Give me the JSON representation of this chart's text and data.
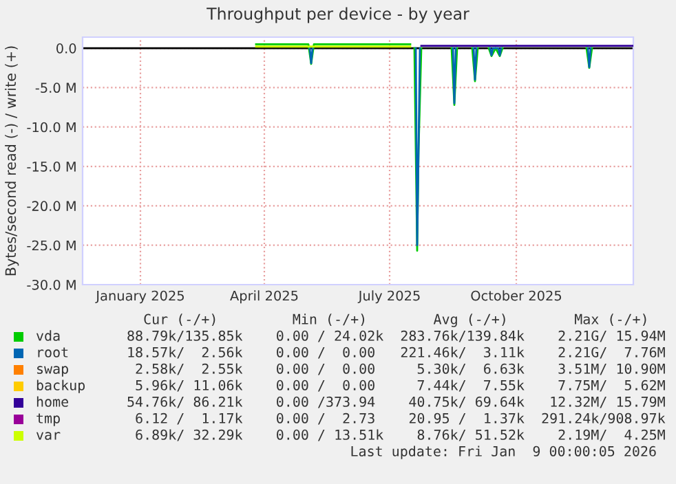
{
  "chart_data": {
    "type": "line",
    "title": "Throughput per device - by year",
    "ylabel": "Bytes/second read (-) / write (+)",
    "series": [
      {
        "name": "vda",
        "color": "#00cc00",
        "x": [
          "2025-04-10",
          "2025-05-18",
          "2025-05-20",
          "2025-05-22",
          "2025-05-29",
          "2025-07-31",
          "2025-08-01",
          "2025-08-03",
          "2025-08-05",
          "2025-08-06",
          "2025-08-08",
          "2025-08-15",
          "2025-08-30",
          "2025-09-01",
          "2025-09-03",
          "2025-09-08",
          "2025-09-14",
          "2025-09-16",
          "2025-09-18",
          "2025-09-22",
          "2025-09-26",
          "2025-09-28",
          "2025-10-01",
          "2025-10-04",
          "2025-10-06",
          "2025-11-01",
          "2025-12-06",
          "2025-12-08",
          "2025-12-10"
        ],
        "values": [
          500000,
          500000,
          -2000000,
          500000,
          500000,
          500000,
          null,
          0,
          -25700000,
          -13000000,
          0,
          null,
          0,
          -7200000,
          0,
          null,
          0,
          -4200000,
          0,
          null,
          0,
          -1000000,
          0,
          -1000000,
          0,
          null,
          0,
          -2500000,
          0
        ]
      },
      {
        "name": "root",
        "color": "#0066b3",
        "x": [
          "2025-05-19",
          "2025-05-20",
          "2025-05-21",
          "2025-07-01",
          "2025-08-04",
          "2025-08-05",
          "2025-08-06",
          "2025-08-07",
          "2025-08-15",
          "2025-08-31",
          "2025-09-01",
          "2025-09-02",
          "2025-09-08",
          "2025-09-15",
          "2025-09-16",
          "2025-09-17",
          "2025-09-22",
          "2025-09-27",
          "2025-09-28",
          "2025-09-29",
          "2025-10-03",
          "2025-10-04",
          "2025-10-05",
          "2025-11-01",
          "2025-12-07",
          "2025-12-08",
          "2025-12-09"
        ],
        "values": [
          0,
          -1900000,
          0,
          null,
          0,
          -25000000,
          -12800000,
          0,
          null,
          0,
          -7000000,
          0,
          null,
          0,
          -4000000,
          0,
          null,
          0,
          -900000,
          0,
          0,
          -900000,
          0,
          null,
          0,
          -2400000,
          0
        ]
      },
      {
        "name": "swap",
        "color": "#ff8000"
      },
      {
        "name": "backup",
        "color": "#ffcc00"
      },
      {
        "name": "home",
        "color": "#330099",
        "x": [
          "2025-08-08",
          "2026-01-09"
        ],
        "values": [
          300000,
          300000
        ]
      },
      {
        "name": "tmp",
        "color": "#990099"
      },
      {
        "name": "var",
        "color": "#ccff00",
        "x": [
          "2025-04-10",
          "2025-07-31"
        ],
        "values": [
          200000,
          200000
        ]
      }
    ],
    "xlim": [
      "2024-12-05",
      "2026-01-09"
    ],
    "xticks": [
      {
        "value": "2025-01-16",
        "label": "January 2025"
      },
      {
        "value": "2025-04-16",
        "label": "April 2025"
      },
      {
        "value": "2025-07-16",
        "label": "July 2025"
      },
      {
        "value": "2025-10-16",
        "label": "October 2025"
      }
    ],
    "ylim": [
      -30000000,
      1400000
    ],
    "yticks": [
      {
        "value": -30000000,
        "label": "-30.0 M"
      },
      {
        "value": -25000000,
        "label": "-25.0 M"
      },
      {
        "value": -20000000,
        "label": "-20.0 M"
      },
      {
        "value": -15000000,
        "label": "-15.0 M"
      },
      {
        "value": -10000000,
        "label": "-10.0 M"
      },
      {
        "value": -5000000,
        "label": "-5.0 M"
      },
      {
        "value": 0,
        "label": "0.0"
      }
    ],
    "ref_lines": [
      {
        "axis": "y",
        "value": 0,
        "color": "#000000"
      }
    ],
    "grid": true,
    "legend": "bottom",
    "annotations": [
      "  Cur (-/+)         Min (-/+)        Avg (-/+)        Max (-/+)  ",
      "88.79k/135.85k    0.00 / 24.02k  283.76k/139.84k    2.21G/ 15.94M",
      "18.57k/  2.56k    0.00 /  0.00   221.46k/  3.11k    2.21G/  7.76M",
      " 2.58k/  2.55k    0.00 /  0.00     5.30k/  6.63k    3.51M/ 10.90M",
      " 5.96k/ 11.06k    0.00 /  0.00     7.44k/  7.55k    7.75M/  5.62M",
      "54.76k/ 86.21k    0.00 /373.94    40.75k/ 69.64k   12.32M/ 15.79M",
      " 6.12 /  1.17k    0.00 /  2.73    20.95 /  1.37k  291.24k/908.97k",
      " 6.89k/ 32.29k    0.00 / 13.51k    8.76k/ 51.52k    2.19M/  4.25M",
      "Last update: Fri Jan  9 00:00:05 2026"
    ]
  }
}
